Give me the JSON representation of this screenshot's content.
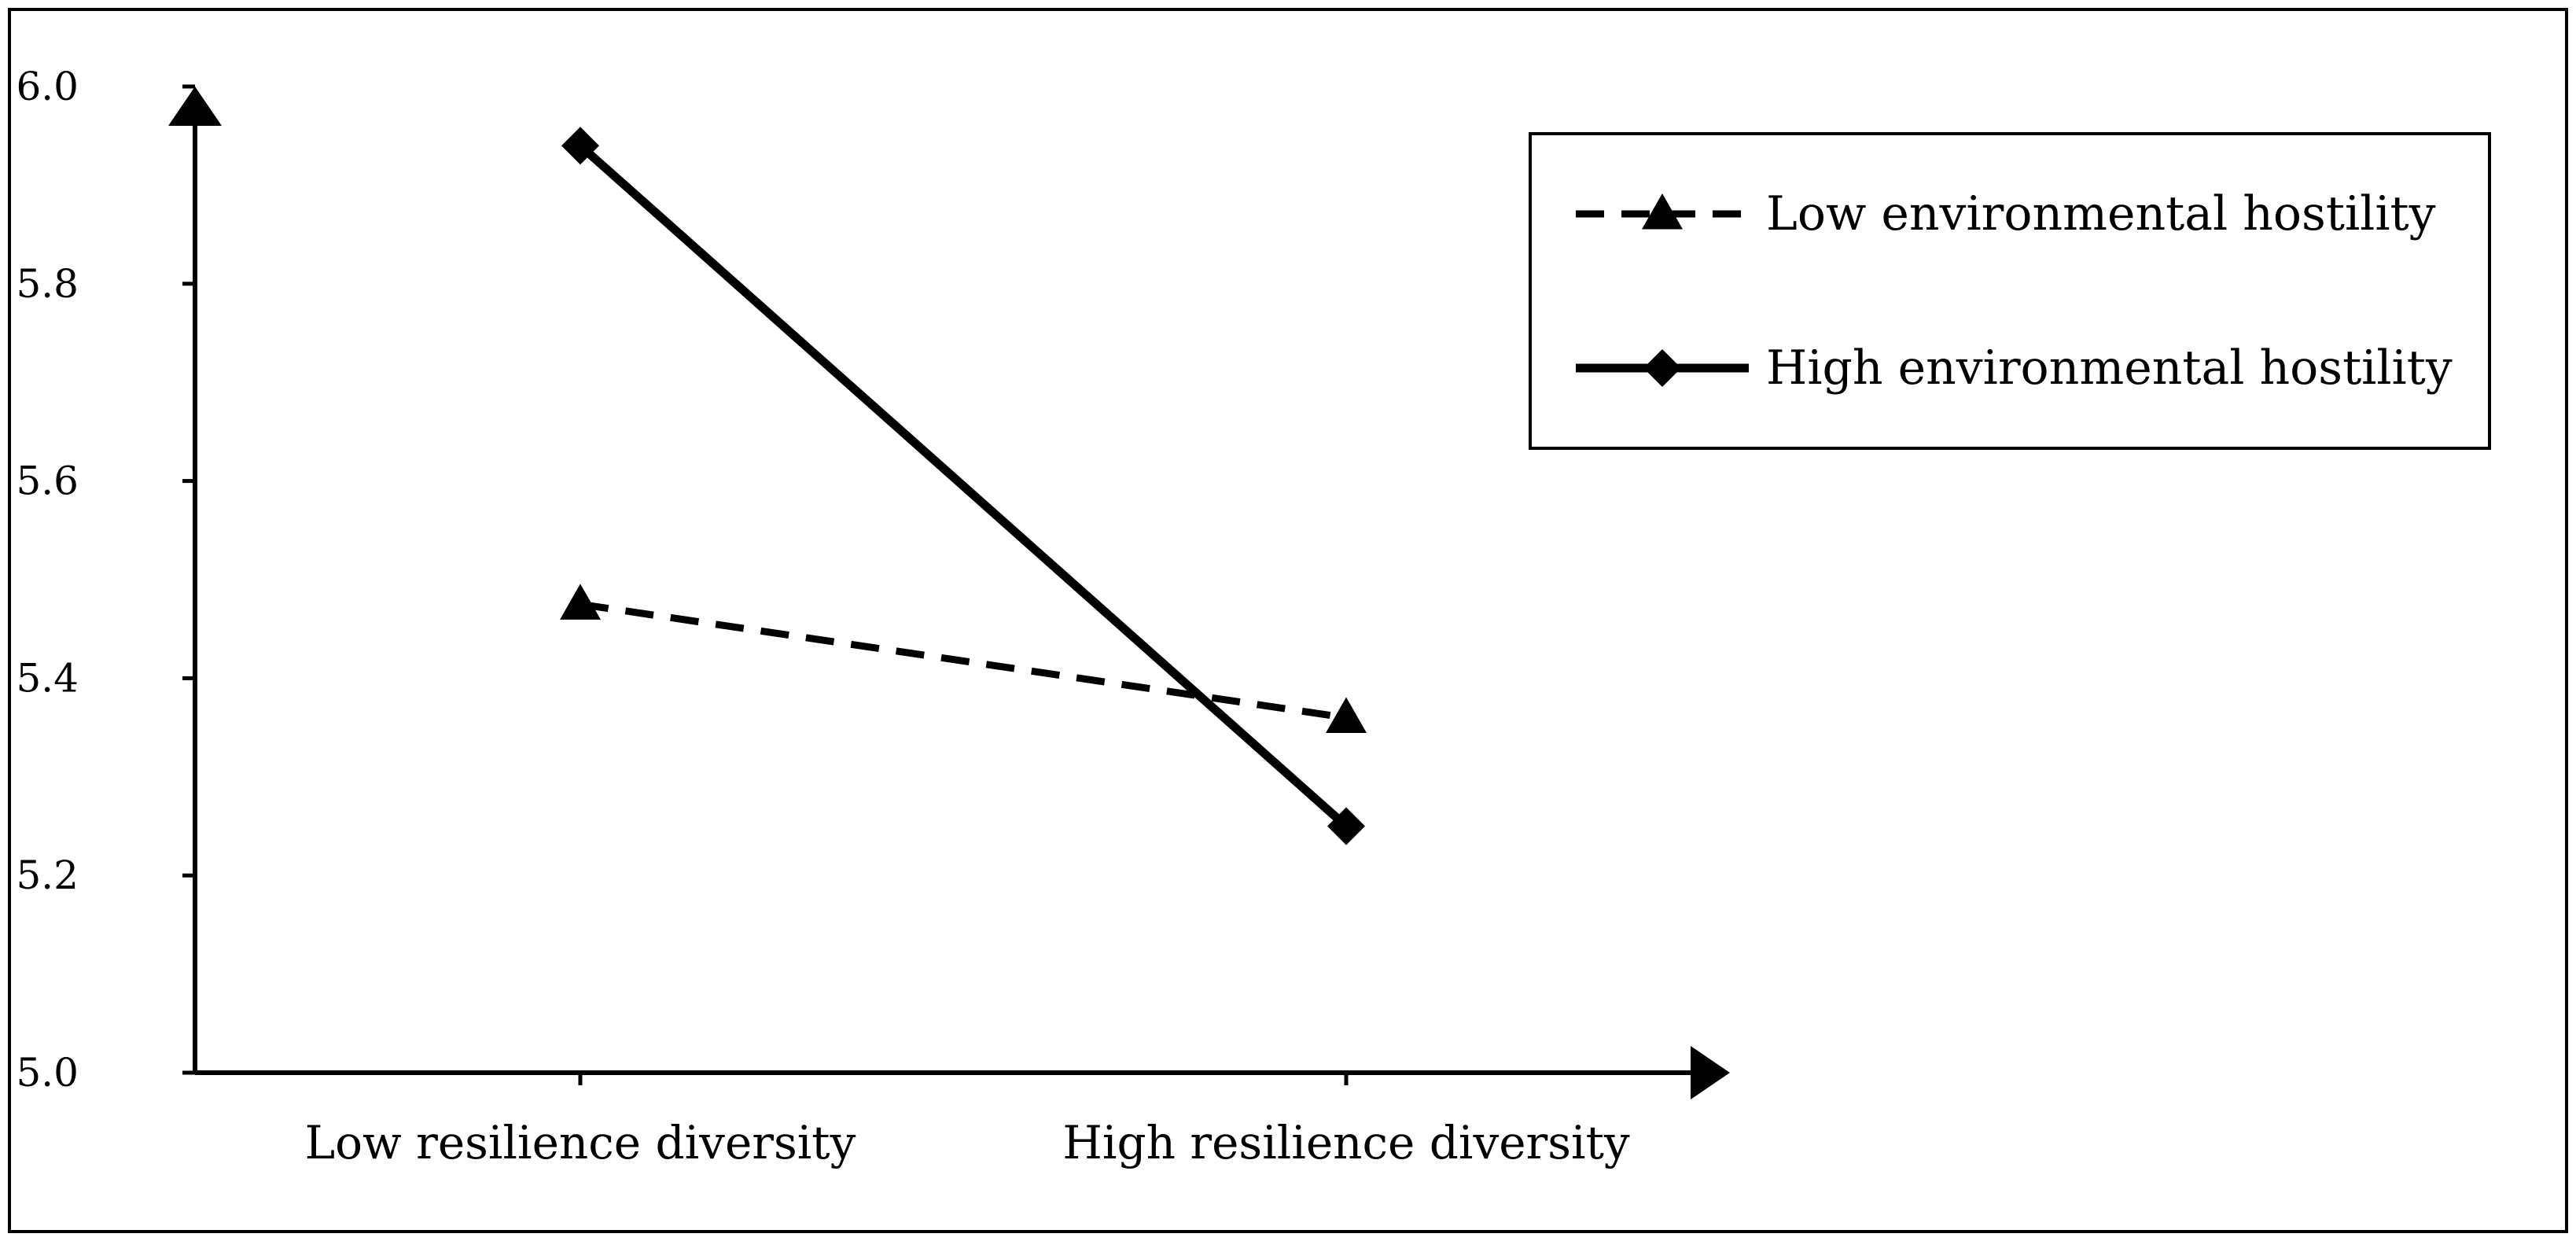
{
  "chart_data": {
    "type": "line",
    "title": "",
    "xlabel": "",
    "ylabel": "",
    "categories": [
      "Low resilience diversity",
      "High resilience diversity"
    ],
    "ylim": [
      5.0,
      6.0
    ],
    "yticks": [
      "5.0",
      "5.2",
      "5.4",
      "5.6",
      "5.8",
      "6.0"
    ],
    "grid": false,
    "legend_position": "top-right",
    "series": [
      {
        "name": "Low environmental hostility",
        "values": [
          5.475,
          5.36
        ],
        "line_style": "dashed",
        "marker": "triangle",
        "color": "#000000"
      },
      {
        "name": "High environmental hostility",
        "values": [
          5.94,
          5.25
        ],
        "line_style": "solid",
        "marker": "diamond",
        "color": "#000000"
      }
    ]
  }
}
